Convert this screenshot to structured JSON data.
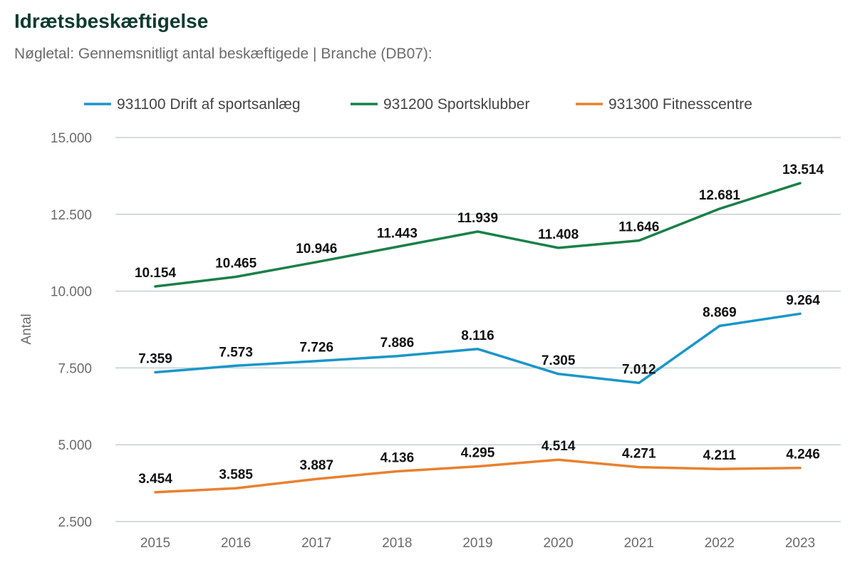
{
  "header": {
    "title": "Idrætsbeskæftigelse",
    "subtitle": "Nøgletal: Gennemsnitligt antal beskæftigede | Branche (DB07):"
  },
  "chart_data": {
    "type": "line",
    "title": "Idrætsbeskæftigelse",
    "subtitle": "Nøgletal: Gennemsnitligt antal beskæftigede | Branche (DB07):",
    "xlabel": "",
    "ylabel": "Antal",
    "ylim": [
      2500,
      15000
    ],
    "yticks": [
      2500,
      5000,
      7500,
      10000,
      12500,
      15000
    ],
    "ytick_labels": [
      "2.500",
      "5.000",
      "7.500",
      "10.000",
      "12.500",
      "15.000"
    ],
    "grid": true,
    "legend_position": "top",
    "categories": [
      "2015",
      "2016",
      "2017",
      "2018",
      "2019",
      "2020",
      "2021",
      "2022",
      "2023"
    ],
    "series": [
      {
        "name": "931100 Drift af sportsanlæg",
        "color": "#1a96c9",
        "values": [
          7359,
          7573,
          7726,
          7886,
          8116,
          7305,
          7012,
          8869,
          9264
        ],
        "labels": [
          "7.359",
          "7.573",
          "7.726",
          "7.886",
          "8.116",
          "7.305",
          "7.012",
          "8.869",
          "9.264"
        ]
      },
      {
        "name": "931200 Sportsklubber",
        "color": "#1a8048",
        "values": [
          10154,
          10465,
          10946,
          11443,
          11939,
          11408,
          11646,
          12681,
          13514
        ],
        "labels": [
          "10.154",
          "10.465",
          "10.946",
          "11.443",
          "11.939",
          "11.408",
          "11.646",
          "12.681",
          "13.514"
        ]
      },
      {
        "name": "931300 Fitnesscentre",
        "color": "#e8812f",
        "values": [
          3454,
          3585,
          3887,
          4136,
          4295,
          4514,
          4271,
          4211,
          4246
        ],
        "labels": [
          "3.454",
          "3.585",
          "3.887",
          "4.136",
          "4.295",
          "4.514",
          "4.271",
          "4.211",
          "4.246"
        ]
      }
    ]
  }
}
